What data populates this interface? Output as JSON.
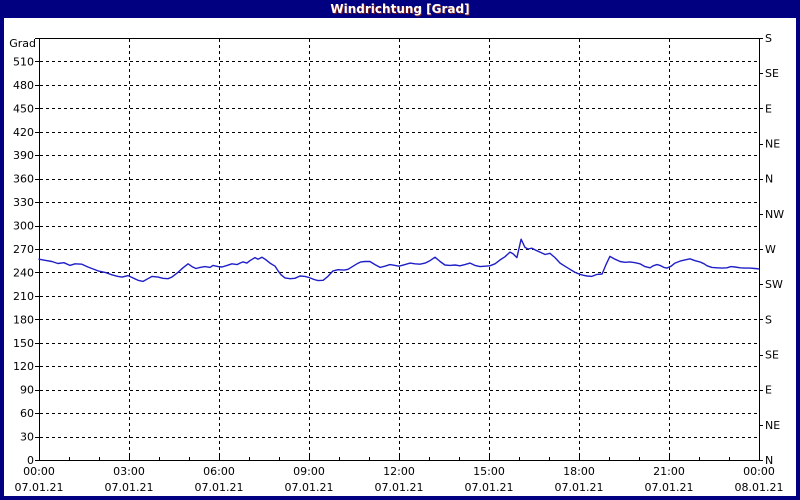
{
  "window": {
    "title": "Windrichtung [Grad]"
  },
  "colors": {
    "titlebar_bg": "#000080",
    "title_text": "#ffffff",
    "title_shadow": "#7a1c1c",
    "window_border": "#000080",
    "plot_bg": "#ffffff",
    "axis": "#000000",
    "grid": "#000000",
    "line": "#1f1fc8"
  },
  "chart_data": {
    "type": "line",
    "title": "Windrichtung [Grad]",
    "y_axis": {
      "unit_label": "Grad",
      "min": 0,
      "max": 540,
      "tick_step": 30,
      "tick_labels": [
        "0",
        "30",
        "60",
        "90",
        "120",
        "150",
        "180",
        "210",
        "240",
        "270",
        "300",
        "330",
        "360",
        "390",
        "420",
        "450",
        "480",
        "510"
      ]
    },
    "right_axis": {
      "tick_step": 45,
      "ticks": [
        {
          "value": 0,
          "label": "N"
        },
        {
          "value": 45,
          "label": "NE"
        },
        {
          "value": 90,
          "label": "E"
        },
        {
          "value": 135,
          "label": "SE"
        },
        {
          "value": 180,
          "label": "S"
        },
        {
          "value": 225,
          "label": "SW"
        },
        {
          "value": 270,
          "label": "W"
        },
        {
          "value": 315,
          "label": "NW"
        },
        {
          "value": 360,
          "label": "N"
        },
        {
          "value": 405,
          "label": "NE"
        },
        {
          "value": 450,
          "label": "E"
        },
        {
          "value": 495,
          "label": "SE"
        },
        {
          "value": 540,
          "label": "S"
        }
      ]
    },
    "x_axis": {
      "range_hours": [
        0,
        24
      ],
      "major_tick_hours": 3,
      "minor_tick_hours": 1,
      "ticks": [
        {
          "hour": 0,
          "time": "00:00",
          "date": "07.01.21"
        },
        {
          "hour": 3,
          "time": "03:00",
          "date": "07.01.21"
        },
        {
          "hour": 6,
          "time": "06:00",
          "date": "07.01.21"
        },
        {
          "hour": 9,
          "time": "09:00",
          "date": "07.01.21"
        },
        {
          "hour": 12,
          "time": "12:00",
          "date": "07.01.21"
        },
        {
          "hour": 15,
          "time": "15:00",
          "date": "07.01.21"
        },
        {
          "hour": 18,
          "time": "18:00",
          "date": "07.01.21"
        },
        {
          "hour": 21,
          "time": "21:00",
          "date": "07.01.21"
        },
        {
          "hour": 24,
          "time": "00:00",
          "date": "08.01.21"
        }
      ]
    },
    "series": [
      {
        "name": "Windrichtung",
        "color": "#1f1fc8",
        "points": [
          [
            0,
            257
          ],
          [
            0.2,
            255.5
          ],
          [
            0.43,
            254
          ],
          [
            0.63,
            251.5
          ],
          [
            0.83,
            252.5
          ],
          [
            1.03,
            249
          ],
          [
            1.2,
            251
          ],
          [
            1.43,
            250.5
          ],
          [
            1.63,
            247
          ],
          [
            1.97,
            242
          ],
          [
            2.2,
            240
          ],
          [
            2.43,
            237
          ],
          [
            2.63,
            235
          ],
          [
            2.77,
            234
          ],
          [
            2.97,
            236
          ],
          [
            3.13,
            233
          ],
          [
            3.3,
            230
          ],
          [
            3.47,
            228.5
          ],
          [
            3.63,
            232
          ],
          [
            3.77,
            235
          ],
          [
            3.97,
            234
          ],
          [
            4.13,
            232.5
          ],
          [
            4.3,
            232
          ],
          [
            4.43,
            234
          ],
          [
            4.63,
            240
          ],
          [
            4.8,
            246
          ],
          [
            4.97,
            251
          ],
          [
            5.1,
            247.5
          ],
          [
            5.23,
            245
          ],
          [
            5.37,
            246.5
          ],
          [
            5.53,
            247.5
          ],
          [
            5.7,
            246.5
          ],
          [
            5.8,
            249
          ],
          [
            5.97,
            247.5
          ],
          [
            6.1,
            247
          ],
          [
            6.27,
            249
          ],
          [
            6.43,
            251
          ],
          [
            6.6,
            250
          ],
          [
            6.7,
            252
          ],
          [
            6.8,
            253.5
          ],
          [
            6.93,
            252
          ],
          [
            7.03,
            255
          ],
          [
            7.2,
            259
          ],
          [
            7.3,
            257
          ],
          [
            7.43,
            259.5
          ],
          [
            7.57,
            256
          ],
          [
            7.7,
            252
          ],
          [
            7.87,
            248
          ],
          [
            7.97,
            242
          ],
          [
            8.07,
            237
          ],
          [
            8.2,
            233
          ],
          [
            8.37,
            232
          ],
          [
            8.53,
            232.5
          ],
          [
            8.7,
            235.5
          ],
          [
            8.87,
            235
          ],
          [
            9.0,
            233.5
          ],
          [
            9.17,
            231
          ],
          [
            9.3,
            229.5
          ],
          [
            9.47,
            230
          ],
          [
            9.63,
            235
          ],
          [
            9.8,
            242
          ],
          [
            9.97,
            243.5
          ],
          [
            10.17,
            243
          ],
          [
            10.3,
            244
          ],
          [
            10.47,
            248
          ],
          [
            10.6,
            251
          ],
          [
            10.73,
            253.5
          ],
          [
            10.87,
            254
          ],
          [
            11.03,
            254
          ],
          [
            11.2,
            250
          ],
          [
            11.37,
            246.5
          ],
          [
            11.53,
            248
          ],
          [
            11.7,
            250
          ],
          [
            11.87,
            249
          ],
          [
            12.0,
            248
          ],
          [
            12.2,
            250
          ],
          [
            12.37,
            252
          ],
          [
            12.53,
            251
          ],
          [
            12.7,
            250.5
          ],
          [
            12.87,
            252
          ],
          [
            13.03,
            255
          ],
          [
            13.2,
            259.5
          ],
          [
            13.37,
            254
          ],
          [
            13.53,
            249.5
          ],
          [
            13.7,
            249
          ],
          [
            13.87,
            249.5
          ],
          [
            14.03,
            248.5
          ],
          [
            14.2,
            250
          ],
          [
            14.37,
            252
          ],
          [
            14.53,
            249
          ],
          [
            14.7,
            247.5
          ],
          [
            14.87,
            248
          ],
          [
            15.03,
            248.5
          ],
          [
            15.2,
            251
          ],
          [
            15.37,
            256
          ],
          [
            15.53,
            260
          ],
          [
            15.7,
            266
          ],
          [
            15.8,
            264
          ],
          [
            15.93,
            259
          ],
          [
            16.07,
            282.5
          ],
          [
            16.2,
            272
          ],
          [
            16.3,
            270
          ],
          [
            16.43,
            271
          ],
          [
            16.53,
            269
          ],
          [
            16.7,
            266
          ],
          [
            16.87,
            263
          ],
          [
            17.03,
            264.5
          ],
          [
            17.2,
            259
          ],
          [
            17.37,
            252
          ],
          [
            17.53,
            248
          ],
          [
            17.7,
            244
          ],
          [
            17.87,
            240
          ],
          [
            18.0,
            238
          ],
          [
            18.13,
            236.5
          ],
          [
            18.27,
            235.5
          ],
          [
            18.43,
            235
          ],
          [
            18.6,
            237.5
          ],
          [
            18.77,
            238
          ],
          [
            18.9,
            250
          ],
          [
            19.03,
            260.5
          ],
          [
            19.2,
            257
          ],
          [
            19.37,
            254
          ],
          [
            19.53,
            253
          ],
          [
            19.7,
            253.5
          ],
          [
            19.87,
            252.5
          ],
          [
            20.03,
            251
          ],
          [
            20.2,
            247.5
          ],
          [
            20.37,
            246
          ],
          [
            20.47,
            248.5
          ],
          [
            20.6,
            250
          ],
          [
            20.7,
            249
          ],
          [
            20.83,
            246.5
          ],
          [
            20.93,
            245.5
          ],
          [
            21.07,
            248
          ],
          [
            21.2,
            252
          ],
          [
            21.37,
            254.5
          ],
          [
            21.53,
            256
          ],
          [
            21.7,
            257.5
          ],
          [
            21.87,
            255
          ],
          [
            22.03,
            253.5
          ],
          [
            22.17,
            251
          ],
          [
            22.27,
            248.5
          ],
          [
            22.43,
            246.5
          ],
          [
            22.6,
            246
          ],
          [
            22.77,
            245.5
          ],
          [
            22.93,
            246
          ],
          [
            23.07,
            247.5
          ],
          [
            23.2,
            247
          ],
          [
            23.37,
            246
          ],
          [
            23.53,
            245.5
          ],
          [
            23.7,
            245.5
          ],
          [
            23.87,
            245
          ],
          [
            24.0,
            244.5
          ]
        ]
      }
    ]
  }
}
